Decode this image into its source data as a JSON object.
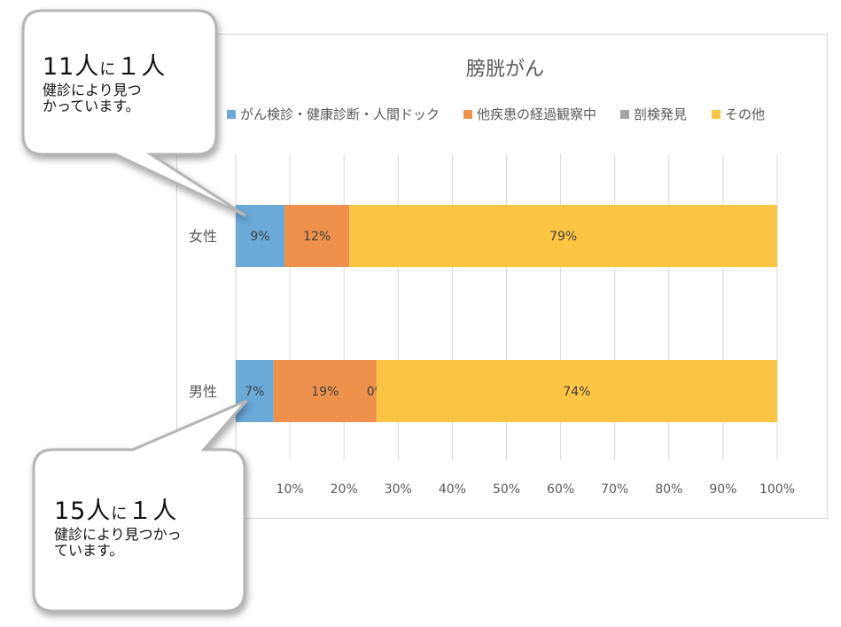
{
  "chart_data": {
    "type": "bar",
    "orientation": "horizontal",
    "stacked": "percent",
    "title": "膀胱がん",
    "categories": [
      "女性",
      "男性"
    ],
    "series": [
      {
        "name": "がん検診・健康診断・人間ドック",
        "color": "#6aa9d8",
        "values": [
          9,
          7
        ]
      },
      {
        "name": "他疾患の経過観察中",
        "color": "#ee914c",
        "values": [
          12,
          19
        ]
      },
      {
        "name": "剖検発見",
        "color": "#a5a5a5",
        "values": [
          0,
          0
        ]
      },
      {
        "name": "その他",
        "color": "#fdc543",
        "values": [
          79,
          74
        ]
      }
    ],
    "data_labels": [
      [
        "9%",
        "12%",
        "",
        "79%"
      ],
      [
        "7%",
        "19%",
        "0%",
        "74%"
      ]
    ],
    "x_ticks": [
      "",
      "10%",
      "20%",
      "30%",
      "40%",
      "50%",
      "60%",
      "70%",
      "80%",
      "90%",
      "100%"
    ],
    "xlim": [
      0,
      100
    ],
    "grid": true,
    "legend_position": "top"
  },
  "callouts": [
    {
      "headline": "11人",
      "mid": "に",
      "tail": "１人",
      "body_lines": [
        "健診により見つ",
        "かっています。"
      ]
    },
    {
      "headline": "15人",
      "mid": "に",
      "tail": "１人",
      "body_lines": [
        "健診により見つかっ",
        "ています。"
      ]
    }
  ]
}
